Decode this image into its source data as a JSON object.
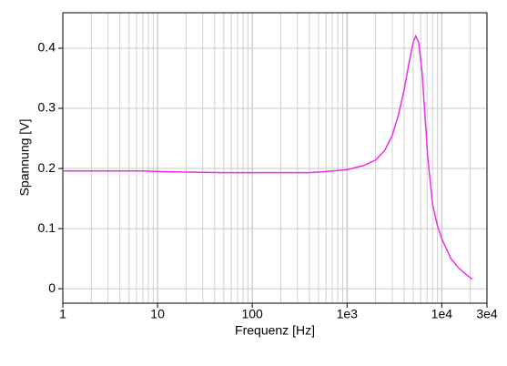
{
  "chart_data": {
    "type": "line",
    "xlabel": "Frequenz [Hz]",
    "ylabel": "Spannung [V]",
    "xscale": "log",
    "x": [
      1,
      2,
      5,
      7,
      10,
      20,
      50,
      100,
      200,
      400,
      600,
      1000,
      1500,
      2000,
      2500,
      3000,
      3500,
      4000,
      4500,
      5000,
      5300,
      5700,
      6200,
      6700,
      7100,
      8000,
      9000,
      10000,
      12500,
      15000,
      18000,
      21000
    ],
    "series": [
      {
        "color": "#e830e8",
        "values": [
          0.196,
          0.196,
          0.196,
          0.196,
          0.195,
          0.194,
          0.193,
          0.193,
          0.193,
          0.193,
          0.195,
          0.198,
          0.205,
          0.214,
          0.23,
          0.255,
          0.29,
          0.33,
          0.375,
          0.41,
          0.42,
          0.41,
          0.36,
          0.28,
          0.22,
          0.14,
          0.105,
          0.083,
          0.05,
          0.035,
          0.024,
          0.016
        ]
      }
    ],
    "xlim": [
      1,
      30000
    ],
    "ylim": [
      -0.024,
      0.459
    ],
    "xticks": [
      1,
      10,
      100,
      {
        "value": 1000,
        "label": "1e3"
      },
      {
        "value": 10000,
        "label": "1e4"
      },
      {
        "value": 30000,
        "label": "3e4"
      }
    ],
    "xminor_ticks": [
      2,
      3,
      4,
      5,
      6,
      7,
      8,
      9,
      20,
      30,
      40,
      50,
      60,
      70,
      80,
      90,
      200,
      300,
      400,
      500,
      600,
      700,
      800,
      900,
      2000,
      3000,
      4000,
      5000,
      6000,
      7000,
      8000,
      9000,
      20000
    ],
    "yticks": [
      0,
      0.1,
      0.2,
      0.3,
      0.4
    ],
    "grid": true
  }
}
